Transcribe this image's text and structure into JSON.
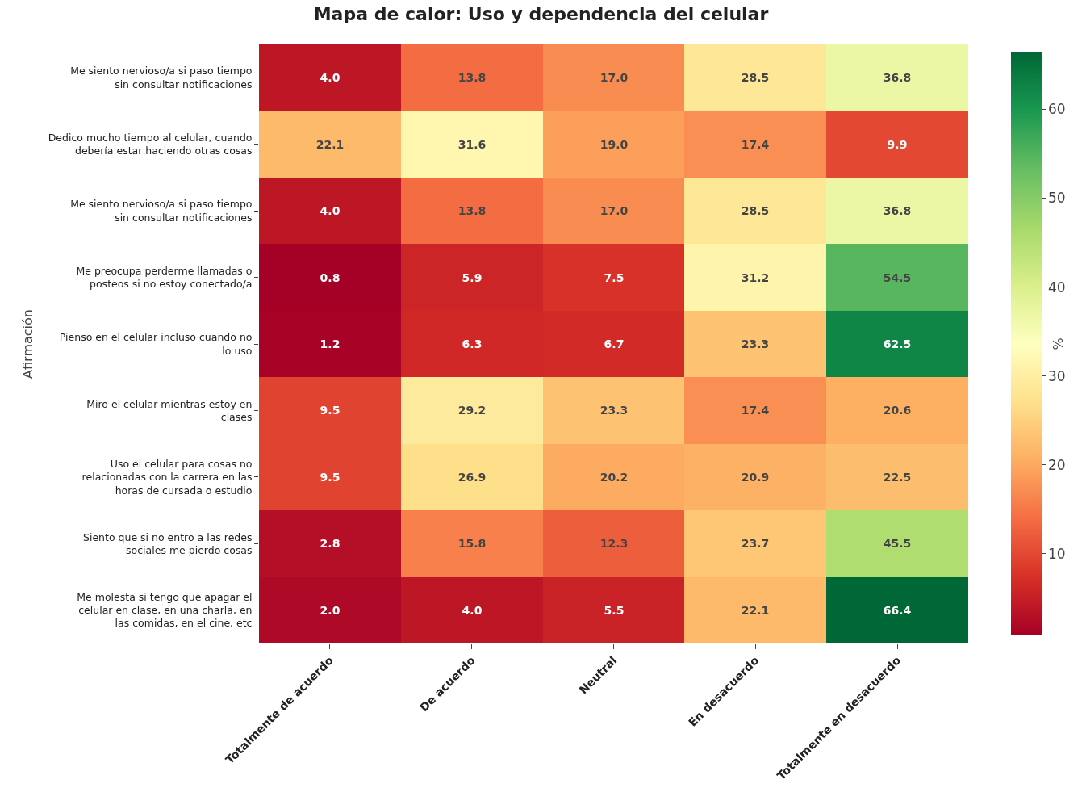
{
  "chart_data": {
    "type": "heatmap",
    "title": "Mapa de calor: Uso y dependencia del celular",
    "ylabel": "Afirmación",
    "clabel": "%",
    "categories": [
      "Totalmente de acuerdo",
      "De acuerdo",
      "Neutral",
      "En desacuerdo",
      "Totalmente en desacuerdo"
    ],
    "y_categories": [
      "Me siento nervioso/a si paso tiempo sin consultar notificaciones",
      "Dedico mucho tiempo al celular, cuando debería estar haciendo otras cosas",
      "Me siento nervioso/a si paso tiempo sin consultar notificaciones",
      "Me preocupa perderme llamadas o posteos si no estoy conectado/a",
      "Pienso en el celular incluso cuando no lo uso",
      "Miro el celular mientras estoy en clases",
      "Uso el celular para cosas no relacionadas con la carrera en las horas de cursada o estudio",
      "Siento que si no entro a las redes sociales me pierdo cosas",
      "Me molesta si tengo que apagar el celular en clase, en una charla, en las comidas, en el cine, etc"
    ],
    "cells": [
      [
        4.0,
        13.8,
        17.0,
        28.5,
        36.8
      ],
      [
        22.1,
        31.6,
        19.0,
        17.4,
        9.9
      ],
      [
        4.0,
        13.8,
        17.0,
        28.5,
        36.8
      ],
      [
        0.8,
        5.9,
        7.5,
        31.2,
        54.5
      ],
      [
        1.2,
        6.3,
        6.7,
        23.3,
        62.5
      ],
      [
        9.5,
        29.2,
        23.3,
        17.4,
        20.6
      ],
      [
        9.5,
        26.9,
        20.2,
        20.9,
        22.5
      ],
      [
        2.8,
        15.8,
        12.3,
        23.7,
        45.5
      ],
      [
        2.0,
        4.0,
        5.5,
        22.1,
        66.4
      ]
    ],
    "cell_labels": [
      [
        "4.0",
        "13.8",
        "17.0",
        "28.5",
        "36.8"
      ],
      [
        "22.1",
        "31.6",
        "19.0",
        "17.4",
        "9.9"
      ],
      [
        "4.0",
        "13.8",
        "17.0",
        "28.5",
        "36.8"
      ],
      [
        "0.8",
        "5.9",
        "7.5",
        "31.2",
        "54.5"
      ],
      [
        "1.2",
        "6.3",
        "6.7",
        "23.3",
        "62.5"
      ],
      [
        "9.5",
        "29.2",
        "23.3",
        "17.4",
        "20.6"
      ],
      [
        "9.5",
        "26.9",
        "20.2",
        "20.9",
        "22.5"
      ],
      [
        "2.8",
        "15.8",
        "12.3",
        "23.7",
        "45.5"
      ],
      [
        "2.0",
        "4.0",
        "5.5",
        "22.1",
        "66.4"
      ]
    ],
    "clim": [
      0.8,
      66.4
    ],
    "cticks": [
      10,
      20,
      30,
      40,
      50,
      60
    ]
  }
}
